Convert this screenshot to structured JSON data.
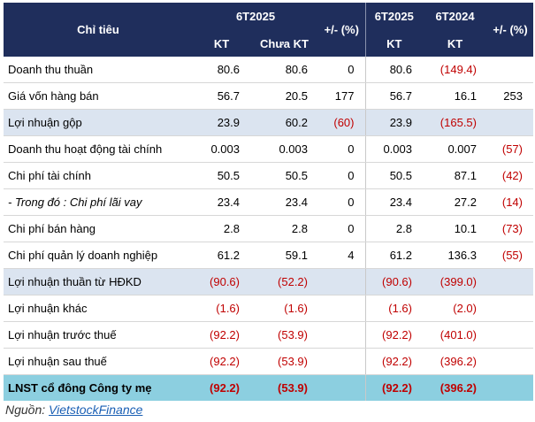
{
  "header": {
    "indicator": "Chỉ tiêu",
    "group1": "6T2025",
    "kt": "KT",
    "chua_kt": "Chưa KT",
    "pct": "+/- (%)",
    "group2": "6T2025",
    "group3": "6T2024",
    "kt2": "KT",
    "kt3": "KT",
    "pct2": "+/- (%)"
  },
  "rows": [
    {
      "label": "Doanh thu thuần",
      "kt": "80.6",
      "chua_kt": "80.6",
      "pct": "0",
      "kt25": "80.6",
      "kt24": "(149.4)",
      "pct2": ""
    },
    {
      "label": "Giá vốn hàng bán",
      "kt": "56.7",
      "chua_kt": "20.5",
      "pct": "177",
      "kt25": "56.7",
      "kt24": "16.1",
      "pct2": "253"
    },
    {
      "label": "Lợi nhuận gộp",
      "kt": "23.9",
      "chua_kt": "60.2",
      "pct": "(60)",
      "kt25": "23.9",
      "kt24": "(165.5)",
      "pct2": ""
    },
    {
      "label": "Doanh thu hoạt động tài chính",
      "kt": "0.003",
      "chua_kt": "0.003",
      "pct": "0",
      "kt25": "0.003",
      "kt24": "0.007",
      "pct2": "(57)"
    },
    {
      "label": "Chi phí tài chính",
      "kt": "50.5",
      "chua_kt": "50.5",
      "pct": "0",
      "kt25": "50.5",
      "kt24": "87.1",
      "pct2": "(42)"
    },
    {
      "label": "- Trong đó : Chi phí lãi vay",
      "kt": "23.4",
      "chua_kt": "23.4",
      "pct": "0",
      "kt25": "23.4",
      "kt24": "27.2",
      "pct2": "(14)"
    },
    {
      "label": "Chi phí bán hàng",
      "kt": "2.8",
      "chua_kt": "2.8",
      "pct": "0",
      "kt25": "2.8",
      "kt24": "10.1",
      "pct2": "(73)"
    },
    {
      "label": "Chi phí quản lý doanh nghiệp",
      "kt": "61.2",
      "chua_kt": "59.1",
      "pct": "4",
      "kt25": "61.2",
      "kt24": "136.3",
      "pct2": "(55)"
    },
    {
      "label": "Lợi nhuận thuần từ HĐKD",
      "kt": "(90.6)",
      "chua_kt": "(52.2)",
      "pct": "",
      "kt25": "(90.6)",
      "kt24": "(399.0)",
      "pct2": ""
    },
    {
      "label": "Lợi nhuận khác",
      "kt": "(1.6)",
      "chua_kt": "(1.6)",
      "pct": "",
      "kt25": "(1.6)",
      "kt24": "(2.0)",
      "pct2": ""
    },
    {
      "label": "Lợi nhuận trước thuế",
      "kt": "(92.2)",
      "chua_kt": "(53.9)",
      "pct": "",
      "kt25": "(92.2)",
      "kt24": "(401.0)",
      "pct2": ""
    },
    {
      "label": "Lợi nhuận sau thuế",
      "kt": "(92.2)",
      "chua_kt": "(53.9)",
      "pct": "",
      "kt25": "(92.2)",
      "kt24": "(396.2)",
      "pct2": ""
    },
    {
      "label": "LNST cổ đông Công ty mẹ",
      "kt": "(92.2)",
      "chua_kt": "(53.9)",
      "pct": "",
      "kt25": "(92.2)",
      "kt24": "(396.2)",
      "pct2": ""
    }
  ],
  "source": {
    "prefix": "Nguồn: ",
    "link_text": "VietstockFinance"
  },
  "colors": {
    "header_bg": "#1f2e5c",
    "highlight_row": "#dbe4f0",
    "total_row": "#8ccfe0",
    "negative": "#c00000"
  }
}
